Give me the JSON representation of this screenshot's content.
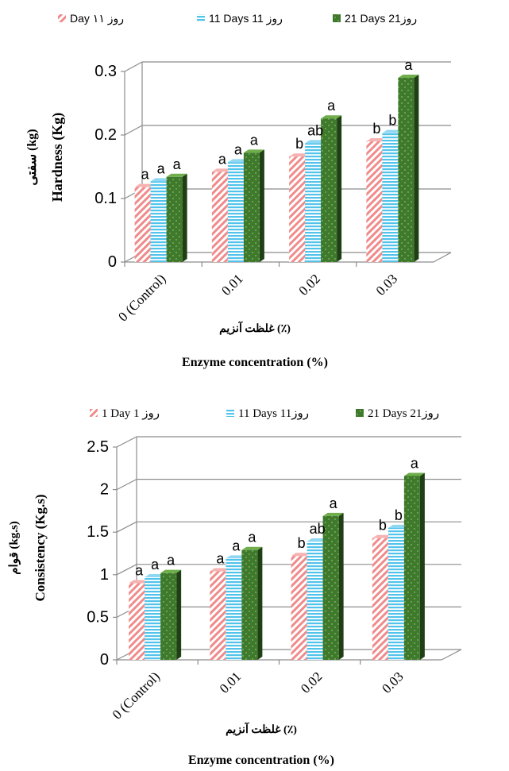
{
  "colors": {
    "day1_fill": "#f08b8b",
    "day11_fill": "#52c3ea",
    "day21_fill_top": "#2d5a1f",
    "day21_fill_bottom": "#5aa03a",
    "grid": "#8c8c8c",
    "text": "#000000"
  },
  "chart_data": [
    {
      "type": "bar",
      "legend": [
        "Day ۱روز ۱",
        "11 Days 11 روز",
        "21 Days 21روز"
      ],
      "legend_placement": "top",
      "ylabel_fa": "سفتی (kg)",
      "ylabel_en": "Hardness (Kg)",
      "xlabel_fa": "غلظت آنزیم (٪)",
      "xlabel_en": "Enzyme concentration (%)",
      "categories": [
        "0 (Control)",
        "0.01",
        "0.02",
        "0.03"
      ],
      "yticks": [
        "0",
        "0.1",
        "0.2",
        "0.3"
      ],
      "ylim": [
        0,
        0.3
      ],
      "grid": true,
      "series": [
        {
          "name": "Day ۱روز ۱",
          "values": [
            0.118,
            0.142,
            0.166,
            0.19
          ],
          "letters": [
            "a",
            "a",
            "b",
            "b"
          ]
        },
        {
          "name": "11 Days 11 روز",
          "values": [
            0.127,
            0.157,
            0.187,
            0.203
          ],
          "letters": [
            "a",
            "a",
            "ab",
            "b"
          ]
        },
        {
          "name": "21 Days 21روز",
          "values": [
            0.134,
            0.172,
            0.226,
            0.29
          ],
          "letters": [
            "a",
            "a",
            "a",
            "a"
          ]
        }
      ]
    },
    {
      "type": "bar",
      "legend": [
        "1 Day 1 روز",
        "11 Days 11روز",
        "21 Days 21روز"
      ],
      "legend_placement": "top",
      "ylabel_fa": "قوام (kg.s)",
      "ylabel_en": "Consistency (Kg.s)",
      "xlabel_fa": "غلظت آنزیم (٪)",
      "xlabel_en": "Enzyme concentration (%)",
      "categories": [
        "0 (Control)",
        "0.01",
        "0.02",
        "0.03"
      ],
      "yticks": [
        "0",
        "0.5",
        "1",
        "1.5",
        "2",
        "2.5"
      ],
      "ylim": [
        0,
        2.5
      ],
      "grid": true,
      "series": [
        {
          "name": "1 Day 1 روز",
          "values": [
            0.9,
            1.04,
            1.22,
            1.43
          ],
          "letters": [
            "a",
            "a",
            "b",
            "b"
          ]
        },
        {
          "name": "11 Days 11روز",
          "values": [
            0.97,
            1.19,
            1.39,
            1.55
          ],
          "letters": [
            "a",
            "a",
            "ab",
            "b"
          ]
        },
        {
          "name": "21 Days 21روز",
          "values": [
            1.02,
            1.29,
            1.69,
            2.16
          ],
          "letters": [
            "a",
            "a",
            "a",
            "a"
          ]
        }
      ]
    }
  ]
}
